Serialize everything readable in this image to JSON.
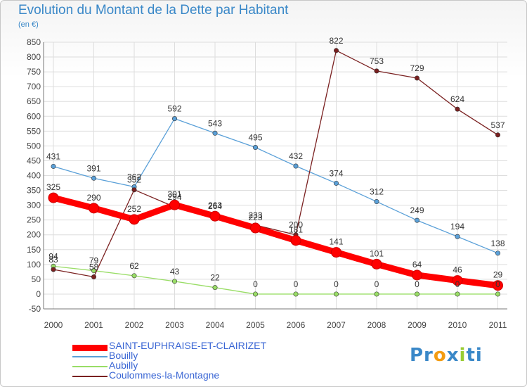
{
  "title": "Evolution du Montant de la Dette par Habitant",
  "unit": "(en €)",
  "logo": "Proxiti",
  "chart_data": {
    "type": "line",
    "x": [
      "2000",
      "2001",
      "2002",
      "2003",
      "2004",
      "2005",
      "2006",
      "2007",
      "2008",
      "2009",
      "2010",
      "2011"
    ],
    "ylim": [
      -50,
      850
    ],
    "yticks": [
      -50,
      0,
      50,
      100,
      150,
      200,
      250,
      300,
      350,
      400,
      450,
      500,
      550,
      600,
      650,
      700,
      750,
      800,
      850
    ],
    "grid": true,
    "legend_position": "bottom-left",
    "series": [
      {
        "name": "SAINT-EUPHRAISE-ET-CLAIRIZET",
        "color": "#ff0000",
        "values": [
          325,
          290,
          252,
          301,
          263,
          223,
          181,
          141,
          101,
          64,
          46,
          29
        ]
      },
      {
        "name": "Bouilly",
        "color": "#5aa0d8",
        "values": [
          431,
          391,
          362,
          592,
          543,
          495,
          432,
          374,
          312,
          249,
          194,
          138
        ]
      },
      {
        "name": "Aubilly",
        "color": "#99dd66",
        "values": [
          94,
          79,
          62,
          43,
          22,
          0,
          0,
          0,
          0,
          0,
          0,
          0
        ]
      },
      {
        "name": "Coulommes-la-Montagne",
        "color": "#7a2020",
        "values": [
          83,
          58,
          352,
          294,
          264,
          233,
          200,
          822,
          753,
          729,
          624,
          537
        ]
      }
    ]
  }
}
